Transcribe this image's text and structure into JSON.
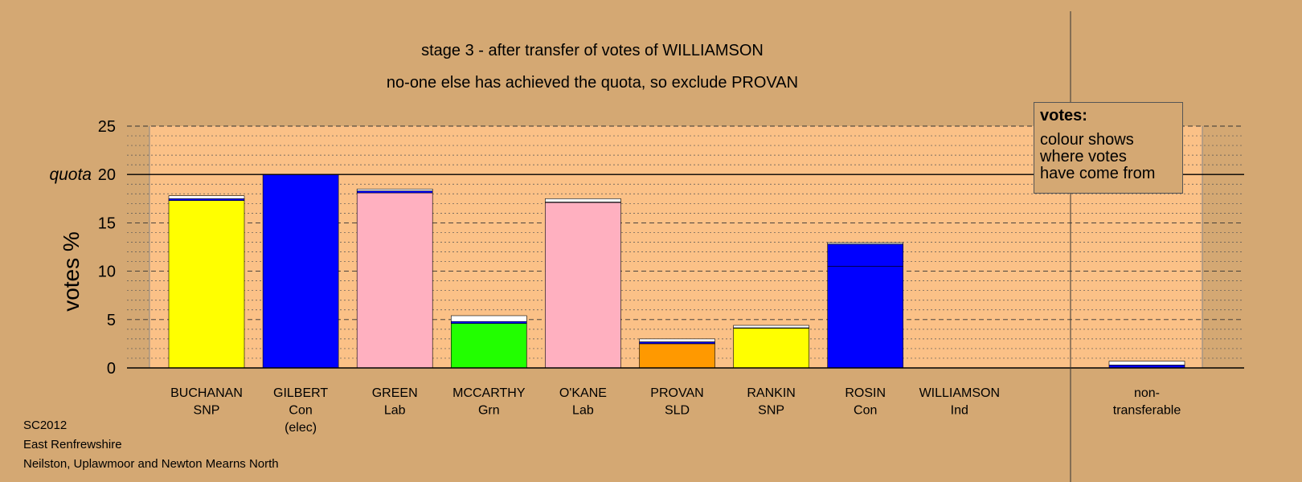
{
  "titles": {
    "line1": "stage 3 - after transfer of votes of WILLIAMSON",
    "line2": "no-one else has achieved the quota, so exclude PROVAN"
  },
  "legend": {
    "title": "votes:",
    "lines": [
      "colour shows",
      "where votes",
      "have come from"
    ]
  },
  "footer": {
    "line1": "SC2012",
    "line2": "East Renfrewshire",
    "line3": "Neilston, Uplawmoor and Newton Mearns North"
  },
  "colors": {
    "background": "#d4a873",
    "plot_area": "#fbc187",
    "SNP": "#ffff00",
    "Con": "#0000ff",
    "Lab": "#ffb0c0",
    "Grn": "#22ff00",
    "SLD": "#ff9900",
    "Ind": "#ffffff",
    "non_transferable": "#ffffff"
  },
  "chart_data": {
    "type": "bar",
    "stacked": true,
    "ylabel": "votes %",
    "ylim": [
      0,
      25
    ],
    "yticks": [
      0,
      5,
      10,
      15,
      20,
      25
    ],
    "ytick_labels": [
      "0",
      "5",
      "10",
      "15",
      "quota 20",
      "25"
    ],
    "quota": 20,
    "quota_label": "quota",
    "grid": "dotted minor, dashed major",
    "legend_position": "top-right",
    "categories": [
      {
        "name": "BUCHANAN",
        "party": "SNP",
        "note": ""
      },
      {
        "name": "GILBERT",
        "party": "Con",
        "note": "(elec)"
      },
      {
        "name": "GREEN",
        "party": "Lab",
        "note": ""
      },
      {
        "name": "MCCARTHY",
        "party": "Grn",
        "note": ""
      },
      {
        "name": "O'KANE",
        "party": "Lab",
        "note": ""
      },
      {
        "name": "PROVAN",
        "party": "SLD",
        "note": ""
      },
      {
        "name": "RANKIN",
        "party": "SNP",
        "note": ""
      },
      {
        "name": "ROSIN",
        "party": "Con",
        "note": ""
      },
      {
        "name": "WILLIAMSON",
        "party": "Ind",
        "note": ""
      },
      {
        "name": "non-",
        "party": "transferable",
        "note": ""
      }
    ],
    "bars": [
      {
        "segments": [
          {
            "source": "SNP",
            "value": 17.3
          },
          {
            "source": "Con",
            "value": 0.2
          },
          {
            "source": "Ind",
            "value": 0.3
          }
        ]
      },
      {
        "segments": [
          {
            "source": "Con",
            "value": 20.0
          }
        ]
      },
      {
        "segments": [
          {
            "source": "Lab",
            "value": 18.1
          },
          {
            "source": "Con",
            "value": 0.2
          },
          {
            "source": "Ind",
            "value": 0.2
          }
        ]
      },
      {
        "segments": [
          {
            "source": "Grn",
            "value": 4.6
          },
          {
            "source": "Con",
            "value": 0.2
          },
          {
            "source": "Ind",
            "value": 0.6
          }
        ]
      },
      {
        "segments": [
          {
            "source": "Lab",
            "value": 17.1
          },
          {
            "source": "Con",
            "value": 0.05
          },
          {
            "source": "Ind",
            "value": 0.35
          }
        ]
      },
      {
        "segments": [
          {
            "source": "SLD",
            "value": 2.5
          },
          {
            "source": "Con",
            "value": 0.2
          },
          {
            "source": "Ind",
            "value": 0.3
          }
        ]
      },
      {
        "segments": [
          {
            "source": "SNP",
            "value": 4.1
          },
          {
            "source": "Con",
            "value": 0.05
          },
          {
            "source": "Ind",
            "value": 0.25
          }
        ]
      },
      {
        "segments": [
          {
            "source": "Con",
            "value": 10.5
          },
          {
            "source": "Con",
            "value": 2.3
          },
          {
            "source": "Ind",
            "value": 0.15
          }
        ]
      },
      {
        "segments": []
      },
      {
        "segments": [
          {
            "source": "Con",
            "value": 0.3
          },
          {
            "source": "Ind",
            "value": 0.4
          }
        ]
      }
    ]
  }
}
